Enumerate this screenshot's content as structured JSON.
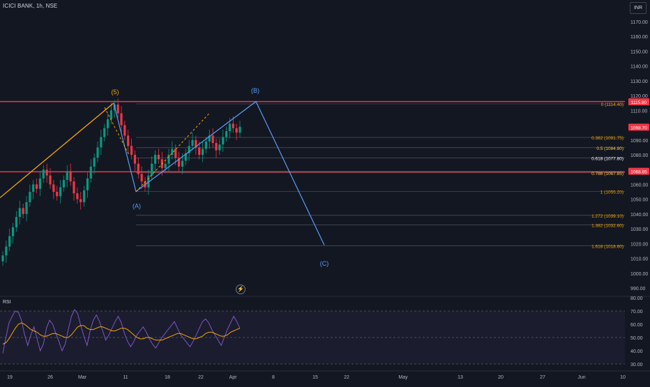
{
  "header": {
    "symbol": "ICICI BANK, 1h, NSE",
    "currency": "INR"
  },
  "price_axis": {
    "labels": [
      "1170.00",
      "1160.00",
      "1150.00",
      "1140.00",
      "1130.00",
      "1120.00",
      "1110.00",
      "1100.00",
      "1090.00",
      "1080.00",
      "1070.00",
      "1060.00",
      "1050.00",
      "1040.00",
      "1030.00",
      "1020.00",
      "1010.00",
      "1000.00",
      "990.00"
    ],
    "badges": [
      {
        "text": "1115.80",
        "value": 1115.8,
        "color": "#f23645"
      },
      {
        "text": "1098.70",
        "value": 1098.7,
        "color": "#f23645"
      },
      {
        "text": "1068.85",
        "value": 1068.85,
        "color": "#f23645"
      }
    ]
  },
  "fib_levels": [
    {
      "ratio": "0",
      "price": "1114.40",
      "value": 1114.4,
      "color": "#f7a600",
      "start_date": "Mar 7"
    },
    {
      "ratio": "0.382",
      "price": "1091.75",
      "value": 1091.75,
      "color": "#f7a600",
      "start_date": "Mar 7"
    },
    {
      "ratio": "0.5",
      "price": "1084.80",
      "value": 1084.8,
      "color": "#f7c948",
      "start_date": "Mar 7"
    },
    {
      "ratio": "0.618",
      "price": "1077.80",
      "value": 1077.8,
      "color": "#ffffff",
      "start_date": "Mar 7"
    },
    {
      "ratio": "0.786",
      "price": "1067.85",
      "value": 1067.85,
      "color": "#f7c948",
      "start_date": "Mar 7"
    },
    {
      "ratio": "1",
      "price": "1055.20",
      "value": 1055.2,
      "color": "#f7a600",
      "start_date": "Mar 7"
    },
    {
      "ratio": "1.272",
      "price": "1039.10",
      "value": 1039.1,
      "color": "#f7a600",
      "start_date": "Mar 7"
    },
    {
      "ratio": "1.382",
      "price": "1032.60",
      "value": 1032.6,
      "color": "#f7a600",
      "start_date": "Mar 7"
    },
    {
      "ratio": "1.618",
      "price": "1018.60",
      "value": 1018.6,
      "color": "#f7a600",
      "start_date": "Mar 7"
    }
  ],
  "horizontal_lines": [
    {
      "value": 1116,
      "color": "#f23645"
    },
    {
      "value": 1068.5,
      "color": "#f23645"
    }
  ],
  "wave_labels": [
    {
      "text": "(5)",
      "color": "#f7a600",
      "date": "Mar 7",
      "price": 1121
    },
    {
      "text": "(A)",
      "color": "#5b9cf6",
      "date": "Mar 12",
      "price": 1044
    },
    {
      "text": "(B)",
      "color": "#5b9cf6",
      "date": "Apr 3",
      "price": 1122
    },
    {
      "text": "(C)",
      "color": "#5b9cf6",
      "date": "Apr 17",
      "price": 1005
    }
  ],
  "time_axis": [
    "19",
    "26",
    "Mar",
    "11",
    "18",
    "22",
    "Apr",
    "8",
    "15",
    "22",
    "May",
    "13",
    "20",
    "27",
    "Jun",
    "10"
  ],
  "rsi": {
    "label": "RSI",
    "axis": [
      "80.00",
      "70.00",
      "60.00",
      "50.00",
      "40.00",
      "30.00"
    ],
    "rsi_color": "#7e57c2",
    "ma_color": "#f7a600",
    "rsi_values": [
      38,
      50,
      61,
      66,
      70,
      69,
      63,
      52,
      44,
      52,
      58,
      49,
      40,
      45,
      57,
      63,
      60,
      53,
      47,
      40,
      45,
      56,
      66,
      71,
      68,
      59,
      51,
      44,
      55,
      63,
      67,
      62,
      55,
      48,
      52,
      57,
      62,
      66,
      61,
      53,
      47,
      43,
      47,
      52,
      55,
      58,
      54,
      49,
      45,
      42,
      46,
      50,
      53,
      56,
      59,
      62,
      57,
      52,
      49,
      46,
      43,
      47,
      52,
      57,
      62,
      64,
      61,
      56,
      52,
      48,
      44,
      50,
      56,
      61,
      66,
      62,
      57
    ],
    "ma_values": [
      45,
      46,
      49,
      53,
      57,
      60,
      61,
      60,
      58,
      56,
      55,
      54,
      52,
      51,
      51,
      52,
      53,
      53,
      52,
      51,
      50,
      50,
      52,
      55,
      58,
      59,
      59,
      57,
      56,
      56,
      57,
      58,
      58,
      57,
      56,
      55,
      55,
      56,
      57,
      57,
      56,
      54,
      52,
      50,
      49,
      49,
      50,
      50,
      49,
      48,
      48,
      48,
      49,
      50,
      51,
      52,
      53,
      53,
      52,
      51,
      50,
      49,
      49,
      50,
      51,
      53,
      54,
      54,
      53,
      52,
      51,
      51,
      52,
      54,
      55,
      56,
      57
    ]
  },
  "chart_data": {
    "type": "candlestick",
    "title": "ICICI BANK, 1h, NSE",
    "ylim": [
      985,
      1178
    ],
    "y_unit": "INR",
    "x_ticks": [
      "19",
      "26",
      "Mar",
      "11",
      "18",
      "22",
      "Apr",
      "8",
      "15",
      "22",
      "May",
      "13",
      "20",
      "27",
      "Jun",
      "10"
    ],
    "close_series": [
      1012,
      1018,
      1025,
      1031,
      1038,
      1044,
      1040,
      1048,
      1055,
      1060,
      1057,
      1064,
      1070,
      1066,
      1060,
      1055,
      1052,
      1058,
      1063,
      1069,
      1062,
      1054,
      1050,
      1048,
      1056,
      1064,
      1072,
      1078,
      1085,
      1092,
      1098,
      1104,
      1110,
      1114,
      1108,
      1100,
      1093,
      1086,
      1080,
      1074,
      1067,
      1062,
      1058,
      1066,
      1074,
      1080,
      1077,
      1071,
      1074,
      1080,
      1084,
      1078,
      1072,
      1076,
      1081,
      1086,
      1090,
      1085,
      1080,
      1084,
      1089,
      1093,
      1088,
      1083,
      1087,
      1092,
      1096,
      1101,
      1098,
      1095,
      1099
    ],
    "bull_color": "#089981",
    "bear_color": "#f23645"
  }
}
